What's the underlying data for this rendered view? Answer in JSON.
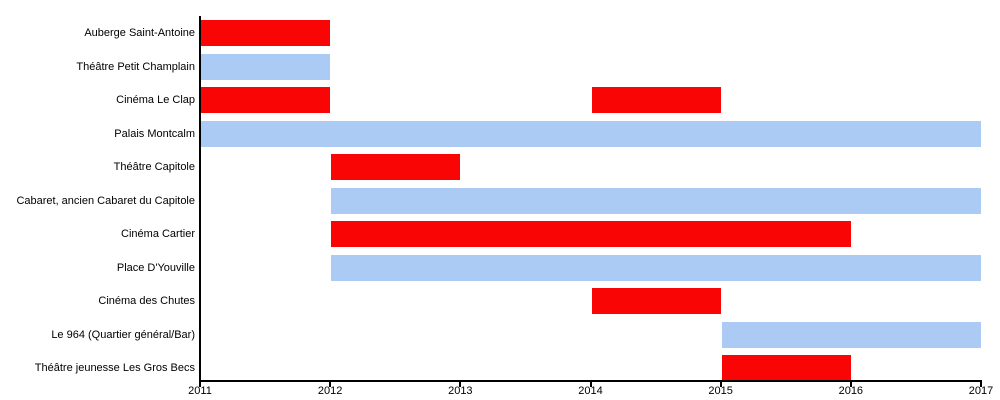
{
  "chart_data": {
    "type": "gantt",
    "title": "",
    "xlabel": "",
    "ylabel": "",
    "grid": false,
    "legend": "none",
    "x_axis": {
      "min": 2011,
      "max": 2017,
      "ticks": [
        "2011",
        "2012",
        "2013",
        "2014",
        "2015",
        "2016",
        "2017"
      ]
    },
    "colors": {
      "red": "#fa0505",
      "blue": "#accbf4"
    },
    "rows": [
      {
        "label": "Auberge Saint-Antoine",
        "bars": [
          {
            "start": 2011,
            "end": 2012,
            "color": "red"
          }
        ]
      },
      {
        "label": "Théâtre Petit Champlain",
        "bars": [
          {
            "start": 2011,
            "end": 2012,
            "color": "blue"
          }
        ]
      },
      {
        "label": "Cinéma Le Clap",
        "bars": [
          {
            "start": 2011,
            "end": 2012,
            "color": "red"
          },
          {
            "start": 2014,
            "end": 2015,
            "color": "red"
          }
        ]
      },
      {
        "label": "Palais Montcalm",
        "bars": [
          {
            "start": 2011,
            "end": 2017,
            "color": "blue"
          }
        ]
      },
      {
        "label": "Théâtre Capitole",
        "bars": [
          {
            "start": 2012,
            "end": 2013,
            "color": "red"
          }
        ]
      },
      {
        "label": "Cabaret, ancien Cabaret du Capitole",
        "bars": [
          {
            "start": 2012,
            "end": 2017,
            "color": "blue"
          }
        ]
      },
      {
        "label": "Cinéma Cartier",
        "bars": [
          {
            "start": 2012,
            "end": 2016,
            "color": "red"
          }
        ]
      },
      {
        "label": "Place D'Youville",
        "bars": [
          {
            "start": 2012,
            "end": 2017,
            "color": "blue"
          }
        ]
      },
      {
        "label": "Cinéma des Chutes",
        "bars": [
          {
            "start": 2014,
            "end": 2015,
            "color": "red"
          }
        ]
      },
      {
        "label": "Le 964 (Quartier général/Bar)",
        "bars": [
          {
            "start": 2015,
            "end": 2017,
            "color": "blue"
          }
        ]
      },
      {
        "label": "Théâtre jeunesse Les Gros Becs",
        "bars": [
          {
            "start": 2015,
            "end": 2016,
            "color": "red"
          }
        ]
      }
    ]
  }
}
